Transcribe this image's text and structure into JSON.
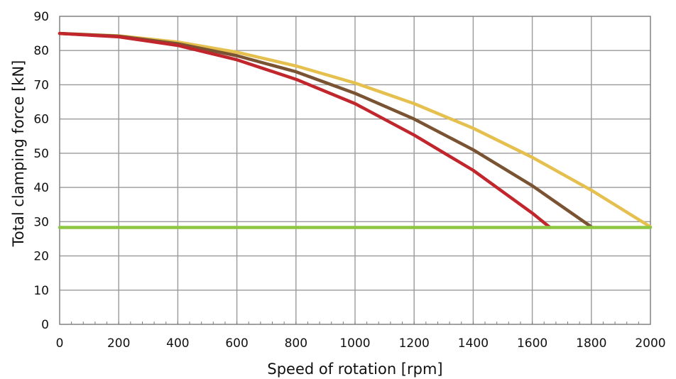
{
  "chart_data": {
    "type": "line",
    "title": "",
    "xlabel": "Speed of rotation [rpm]",
    "ylabel": "Total clamping force [kN]",
    "xlim": [
      0,
      2000
    ],
    "ylim": [
      0,
      90
    ],
    "xticks": [
      0,
      200,
      400,
      600,
      800,
      1000,
      1200,
      1400,
      1600,
      1800,
      2000
    ],
    "yticks": [
      0,
      10,
      20,
      30,
      40,
      50,
      60,
      70,
      80,
      90
    ],
    "grid": true,
    "legend": "none",
    "series": [
      {
        "color": "#e6c04f",
        "x": [
          0,
          200,
          400,
          600,
          800,
          1000,
          1200,
          1400,
          1600,
          1800,
          2000
        ],
        "y": [
          85,
          84.3,
          82.5,
          79.5,
          75.5,
          70.5,
          64.5,
          57.3,
          48.8,
          39.2,
          28.5
        ]
      },
      {
        "color": "#7a5333",
        "x": [
          0,
          200,
          400,
          600,
          800,
          1000,
          1200,
          1400,
          1600,
          1800
        ],
        "y": [
          85,
          84.2,
          82,
          78.5,
          73.8,
          67.5,
          60,
          51,
          40.5,
          28.5
        ]
      },
      {
        "color": "#c0262b",
        "x": [
          0,
          200,
          400,
          600,
          800,
          1000,
          1200,
          1400,
          1600,
          1660
        ],
        "y": [
          85,
          84,
          81.5,
          77.3,
          71.6,
          64.5,
          55.3,
          45,
          32.5,
          28.3
        ]
      },
      {
        "color": "#8dc641",
        "x": [
          0,
          2000
        ],
        "y": [
          28.3,
          28.3
        ]
      }
    ]
  }
}
